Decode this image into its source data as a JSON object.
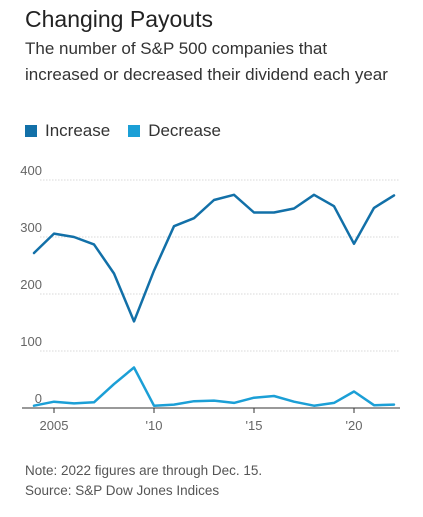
{
  "header": {
    "title": "Changing Payouts",
    "subtitle": "The number of S&P 500 companies that increased or decreased their dividend each year"
  },
  "legend": {
    "increase_label": "Increase",
    "decrease_label": "Decrease"
  },
  "colors": {
    "increase": "#1270a8",
    "decrease": "#1b9fd6",
    "grid": "#d8d8d8"
  },
  "footer": {
    "note": "Note: 2022 figures are through Dec. 15.",
    "source": "Source: S&P Dow Jones Indices"
  },
  "chart_data": {
    "type": "line",
    "title": "Changing Payouts",
    "x": [
      2004,
      2005,
      2006,
      2007,
      2008,
      2009,
      2010,
      2011,
      2012,
      2013,
      2014,
      2015,
      2016,
      2017,
      2018,
      2019,
      2020,
      2021,
      2022
    ],
    "series": [
      {
        "name": "Increase",
        "values": [
          272,
          306,
          300,
          287,
          236,
          152,
          241,
          319,
          333,
          365,
          374,
          343,
          343,
          350,
          374,
          354,
          288,
          351,
          373
        ]
      },
      {
        "name": "Decrease",
        "values": [
          4,
          11,
          8,
          10,
          42,
          71,
          4,
          6,
          12,
          13,
          9,
          18,
          21,
          11,
          4,
          9,
          29,
          5,
          6
        ]
      }
    ],
    "y_ticks": [
      0,
      100,
      200,
      300,
      400
    ],
    "y_tick_labels": [
      "0",
      "100",
      "200",
      "300",
      "400"
    ],
    "x_ticks": [
      2005,
      2010,
      2015,
      2020
    ],
    "x_tick_labels": [
      "2005",
      "'10",
      "'15",
      "'20"
    ],
    "xlim": [
      2003.4,
      2022.3
    ],
    "ylim": [
      0,
      400
    ],
    "grid": true,
    "legend_position": "top-left"
  }
}
